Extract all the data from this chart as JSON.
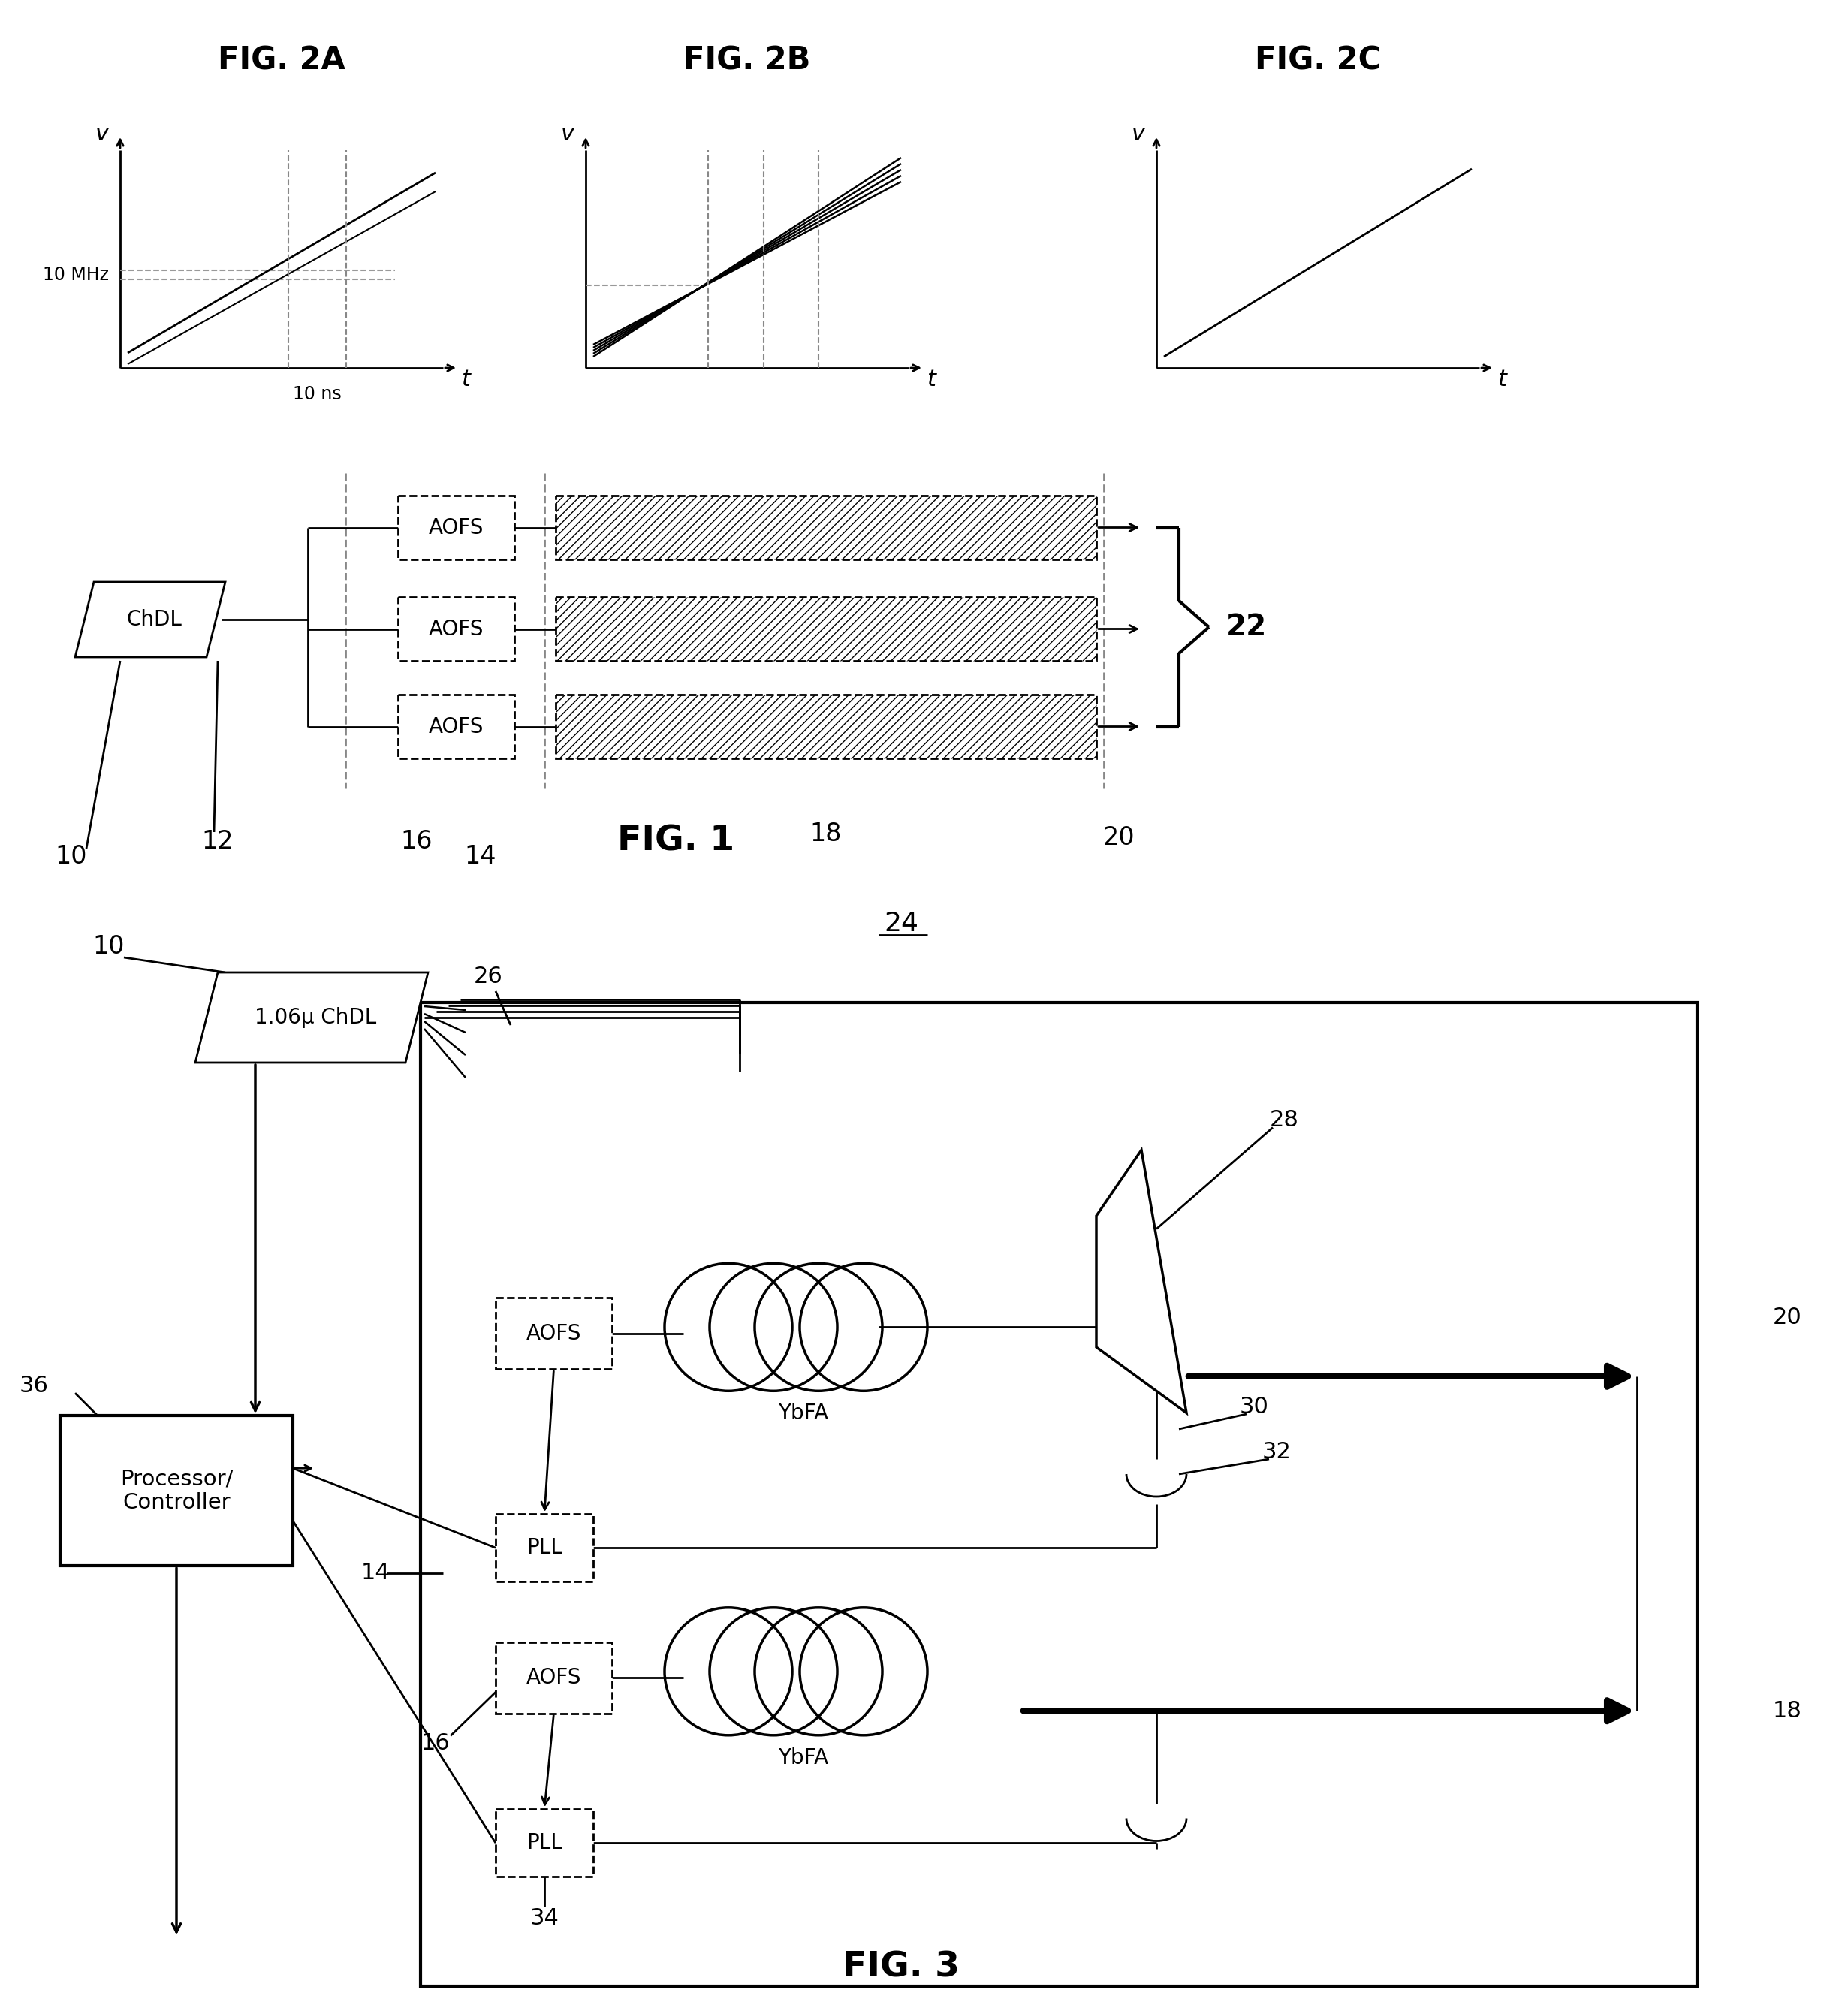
{
  "bg_color": "#ffffff",
  "line_color": "#000000",
  "fig2a_title": "FIG. 2A",
  "fig2b_title": "FIG. 2B",
  "fig2c_title": "FIG. 2C",
  "fig1_title": "FIG. 1",
  "fig3_title": "FIG. 3",
  "label_10MHz": "10 MHz",
  "label_10ns": "10 ns",
  "label_v": "v",
  "label_t": "t",
  "label_ChDL": "ChDL",
  "label_AOFS": "AOFS",
  "label_22": "22",
  "label_10": "10",
  "label_12": "12",
  "label_14": "14",
  "label_16": "16",
  "label_18": "18",
  "label_20": "20",
  "label_24": "24",
  "label_26": "26",
  "label_28": "28",
  "label_30": "30",
  "label_32": "32",
  "label_34": "34",
  "label_36": "36",
  "label_ChDL3": "1.06μ ChDL",
  "label_YbFA": "YbFA",
  "label_PLL": "PLL",
  "label_Processor": "Processor/\nController"
}
